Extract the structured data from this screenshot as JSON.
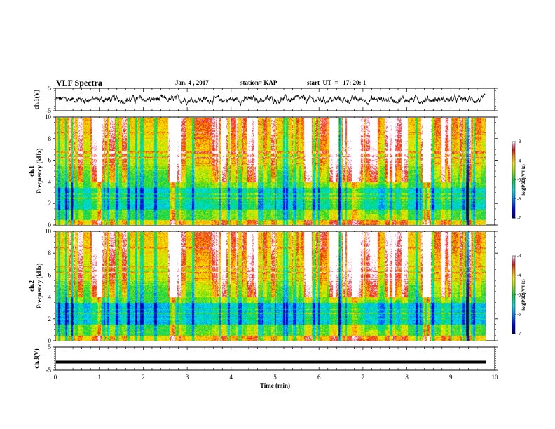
{
  "header": {
    "title": "VLF Spectra",
    "date": "Jan. 4 , 2017",
    "station": "station= KAP",
    "start": "start  UT  =   17: 20: 1"
  },
  "chart_data": {
    "type": "heatmap",
    "xlabel": "Time  (min)",
    "xlim": [
      0,
      10
    ],
    "x_ticks": [
      "0",
      "1",
      "2",
      "3",
      "4",
      "5",
      "6",
      "7",
      "8",
      "9",
      "10"
    ],
    "data_end_min": 9.8,
    "panels": [
      {
        "kind": "waveform",
        "ylabel": "ch.1(V)",
        "ylim": [
          -5,
          5
        ],
        "y_ticks": [
          "5",
          "-5"
        ],
        "note": "noisy waveform around about 0 V, amplitude about ±1.5 V"
      },
      {
        "kind": "spectrogram",
        "ylabel_line1": "ch.1",
        "ylabel_line2": "Frequency  (kHz)",
        "ylim": [
          0,
          10
        ],
        "y_ticks": [
          "0",
          "2",
          "4",
          "6",
          "8",
          "10"
        ],
        "colorbar": {
          "label": "log(PSD)(V²/Hz)",
          "range": [
            -7,
            -3
          ],
          "ticks": [
            "-3",
            "-4",
            "-5",
            "-6",
            "-7"
          ]
        }
      },
      {
        "kind": "spectrogram",
        "ylabel_line1": "ch.2",
        "ylabel_line2": "Frequency  (kHz)",
        "ylim": [
          0,
          10
        ],
        "y_ticks": [
          "0",
          "2",
          "4",
          "6",
          "8",
          "10"
        ],
        "colorbar": {
          "label": "log(PSD)(V²/Hz)",
          "range": [
            -7,
            -3
          ],
          "ticks": [
            "-3",
            "-4",
            "-5",
            "-6",
            "-7"
          ]
        }
      },
      {
        "kind": "waveform",
        "ylabel": "ch.3(V)",
        "ylim": [
          -5,
          5
        ],
        "y_ticks": [
          "5",
          "-5"
        ],
        "constant_value": -1.5
      }
    ]
  }
}
